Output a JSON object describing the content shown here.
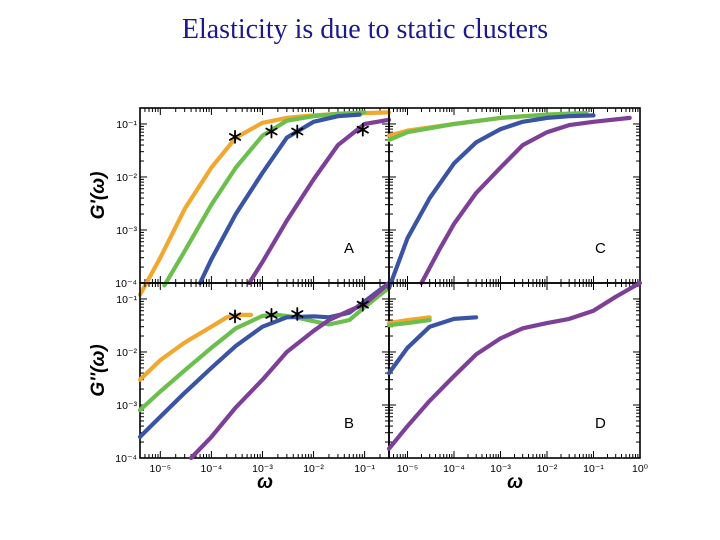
{
  "slide": {
    "title": "Elasticity is due to static clusters"
  },
  "colors": {
    "orange": "#f0a830",
    "green": "#6cbf4c",
    "blue": "#3a54a4",
    "purple": "#7d3f98"
  },
  "chart_data": {
    "type": "line",
    "x_scale": "log",
    "y_scale": "log",
    "grid": false,
    "xlabel": "ω",
    "x_tick_labels_left": [
      "10⁻⁵",
      "10⁻⁴",
      "10⁻³",
      "10⁻²",
      "10⁻¹"
    ],
    "x_tick_labels_right": [
      "10⁻⁵",
      "10⁻⁴",
      "10⁻³",
      "10⁻²",
      "10⁻¹",
      "10⁰"
    ],
    "y_tick_labels": [
      "10⁻¹",
      "10⁻²",
      "10⁻³",
      "10⁻⁴"
    ],
    "xlim_left": [
      4e-06,
      0.3
    ],
    "xlim_right": [
      4e-06,
      1.0
    ],
    "ylim": [
      0.0001,
      0.2
    ],
    "panels": [
      {
        "id": "A",
        "label": "A",
        "ylabel": "G'(ω)",
        "series": [
          {
            "color": "orange",
            "x": [
              4e-06,
              1e-05,
              3e-05,
              0.0001,
              0.0003,
              0.001,
              0.003,
              0.01,
              0.03,
              0.1,
              0.3
            ],
            "y": [
              6e-05,
              0.0003,
              0.0025,
              0.015,
              0.055,
              0.105,
              0.13,
              0.145,
              0.155,
              0.16,
              0.165
            ]
          },
          {
            "color": "green",
            "x": [
              1.2e-05,
              3e-05,
              0.0001,
              0.0003,
              0.001,
              0.003,
              0.01,
              0.03,
              0.1
            ],
            "y": [
              9e-05,
              0.0004,
              0.003,
              0.015,
              0.06,
              0.115,
              0.14,
              0.155,
              0.165
            ]
          },
          {
            "color": "blue",
            "x": [
              6e-05,
              0.0001,
              0.0003,
              0.001,
              0.003,
              0.01,
              0.03,
              0.08
            ],
            "y": [
              0.0001,
              0.00028,
              0.002,
              0.012,
              0.055,
              0.11,
              0.14,
              0.15
            ]
          },
          {
            "color": "purple",
            "x": [
              0.00055,
              0.001,
              0.003,
              0.01,
              0.03,
              0.1,
              0.3
            ],
            "y": [
              0.0001,
              0.00025,
              0.0015,
              0.009,
              0.04,
              0.1,
              0.12
            ]
          }
        ],
        "markers": [
          {
            "x": 0.00029,
            "y": 0.057
          },
          {
            "x": 0.0015,
            "y": 0.072
          },
          {
            "x": 0.0048,
            "y": 0.072
          },
          {
            "x": 0.092,
            "y": 0.078
          }
        ]
      },
      {
        "id": "B",
        "label": "B",
        "ylabel": "G''(ω)",
        "series": [
          {
            "color": "orange",
            "x": [
              4e-06,
              1e-05,
              3e-05,
              0.0001,
              0.0002,
              0.0003,
              0.0006
            ],
            "y": [
              0.003,
              0.007,
              0.015,
              0.03,
              0.045,
              0.05,
              0.05
            ]
          },
          {
            "color": "green",
            "x": [
              4e-06,
              1e-05,
              3e-05,
              0.0001,
              0.0003,
              0.001,
              0.002,
              0.004,
              0.01,
              0.02,
              0.05,
              0.1,
              0.2,
              0.3
            ],
            "y": [
              0.0008,
              0.0018,
              0.0045,
              0.012,
              0.028,
              0.048,
              0.05,
              0.046,
              0.038,
              0.033,
              0.04,
              0.07,
              0.12,
              0.16
            ]
          },
          {
            "color": "blue",
            "x": [
              4e-06,
              1e-05,
              3e-05,
              0.0001,
              0.0003,
              0.001,
              0.003,
              0.01,
              0.02,
              0.05,
              0.1,
              0.3
            ],
            "y": [
              0.00025,
              0.0006,
              0.0017,
              0.005,
              0.013,
              0.03,
              0.045,
              0.047,
              0.045,
              0.055,
              0.09,
              0.2
            ]
          },
          {
            "color": "purple",
            "x": [
              4e-05,
              0.0001,
              0.0003,
              0.001,
              0.003,
              0.01,
              0.02,
              0.05,
              0.1,
              0.3
            ],
            "y": [
              0.0001,
              0.00025,
              0.0009,
              0.003,
              0.01,
              0.025,
              0.04,
              0.06,
              0.08,
              0.2
            ]
          }
        ],
        "markers": [
          {
            "x": 0.00029,
            "y": 0.047
          },
          {
            "x": 0.0015,
            "y": 0.05
          },
          {
            "x": 0.0048,
            "y": 0.052
          },
          {
            "x": 0.092,
            "y": 0.078
          }
        ]
      },
      {
        "id": "C",
        "label": "C",
        "ylabel": "",
        "series": [
          {
            "color": "orange",
            "x": [
              4e-06,
              1e-05,
              0.0001,
              0.001,
              0.01,
              0.07
            ],
            "y": [
              0.06,
              0.075,
              0.1,
              0.13,
              0.15,
              0.16
            ]
          },
          {
            "color": "green",
            "x": [
              4e-06,
              1e-05,
              0.0001,
              0.001,
              0.01,
              0.07
            ],
            "y": [
              0.05,
              0.07,
              0.1,
              0.13,
              0.15,
              0.16
            ]
          },
          {
            "color": "blue",
            "x": [
              4e-06,
              1e-05,
              3e-05,
              0.0001,
              0.0003,
              0.001,
              0.003,
              0.01,
              0.03,
              0.1
            ],
            "y": [
              8e-05,
              0.0007,
              0.004,
              0.018,
              0.045,
              0.08,
              0.11,
              0.13,
              0.14,
              0.145
            ]
          },
          {
            "color": "purple",
            "x": [
              2e-05,
              5e-05,
              0.0001,
              0.0003,
              0.001,
              0.003,
              0.01,
              0.03,
              0.1,
              0.6
            ],
            "y": [
              0.0001,
              0.00045,
              0.0013,
              0.005,
              0.015,
              0.04,
              0.07,
              0.095,
              0.11,
              0.13
            ]
          }
        ]
      },
      {
        "id": "D",
        "label": "D",
        "ylabel": "",
        "series": [
          {
            "color": "orange",
            "x": [
              4e-06,
              1e-05,
              3e-05
            ],
            "y": [
              0.035,
              0.04,
              0.045
            ]
          },
          {
            "color": "green",
            "x": [
              4e-06,
              1e-05,
              3e-05
            ],
            "y": [
              0.032,
              0.035,
              0.04
            ]
          },
          {
            "color": "blue",
            "x": [
              4e-06,
              1e-05,
              3e-05,
              0.0001,
              0.0003
            ],
            "y": [
              0.004,
              0.012,
              0.03,
              0.042,
              0.045
            ]
          },
          {
            "color": "purple",
            "x": [
              4e-06,
              1e-05,
              3e-05,
              0.0001,
              0.0003,
              0.001,
              0.003,
              0.01,
              0.03,
              0.1,
              0.3,
              1.0
            ],
            "y": [
              0.00015,
              0.0004,
              0.0012,
              0.0035,
              0.009,
              0.018,
              0.028,
              0.035,
              0.042,
              0.06,
              0.11,
              0.2
            ]
          }
        ]
      }
    ]
  }
}
